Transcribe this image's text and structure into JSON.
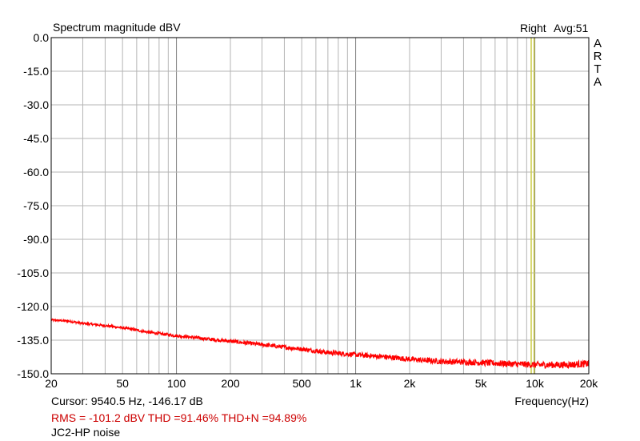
{
  "chart_data": {
    "type": "line",
    "title": "Spectrum magnitude dBV",
    "channel_label": "Right",
    "average_label": "Avg:51",
    "brand_label": "ARTA",
    "xlabel": "Frequency(Hz)",
    "x_scale": "log",
    "xlim": [
      20,
      20000
    ],
    "ylim": [
      -150,
      0
    ],
    "x_ticks": [
      {
        "value": 20,
        "label": "20"
      },
      {
        "value": 50,
        "label": "50"
      },
      {
        "value": 100,
        "label": "100"
      },
      {
        "value": 200,
        "label": "200"
      },
      {
        "value": 500,
        "label": "500"
      },
      {
        "value": 1000,
        "label": "1k"
      },
      {
        "value": 2000,
        "label": "2k"
      },
      {
        "value": 5000,
        "label": "5k"
      },
      {
        "value": 10000,
        "label": "10k"
      },
      {
        "value": 20000,
        "label": "20k"
      }
    ],
    "y_ticks": [
      {
        "value": 0,
        "label": "0.0"
      },
      {
        "value": -15,
        "label": "-15.0"
      },
      {
        "value": -30,
        "label": "-30.0"
      },
      {
        "value": -45,
        "label": "-45.0"
      },
      {
        "value": -60,
        "label": "-60.0"
      },
      {
        "value": -75,
        "label": "-75.0"
      },
      {
        "value": -90,
        "label": "-90.0"
      },
      {
        "value": -105,
        "label": "-105.0"
      },
      {
        "value": -120,
        "label": "-120.0"
      },
      {
        "value": -135,
        "label": "-135.0"
      },
      {
        "value": -150,
        "label": "-150.0"
      }
    ],
    "grid": true,
    "series": [
      {
        "color": "#ff0000",
        "x": [
          20,
          25,
          30,
          40,
          50,
          60,
          70,
          100,
          150,
          200,
          300,
          500,
          700,
          1000,
          1500,
          2000,
          3000,
          5000,
          7000,
          10000,
          15000,
          20000
        ],
        "y": [
          -126,
          -126.5,
          -127.5,
          -128.5,
          -129.5,
          -130.5,
          -131.5,
          -133.0,
          -134.5,
          -135.5,
          -137.0,
          -139.0,
          -140.5,
          -141.5,
          -142.5,
          -143.5,
          -144.5,
          -145.0,
          -145.5,
          -146.0,
          -146.0,
          -145.5
        ]
      }
    ],
    "cursor_lines_hz": [
      9540.5,
      9900
    ],
    "cursor_color": "#cccc44",
    "axis_color": "#000000",
    "grid_color": "#b4b4b4"
  },
  "info": {
    "cursor_text": "Cursor:  9540.5 Hz, -146.17 dB",
    "stats_text": "RMS = -101.2 dBV   THD =91.46%   THD+N =94.89%",
    "caption": "JC2-HP noise"
  }
}
